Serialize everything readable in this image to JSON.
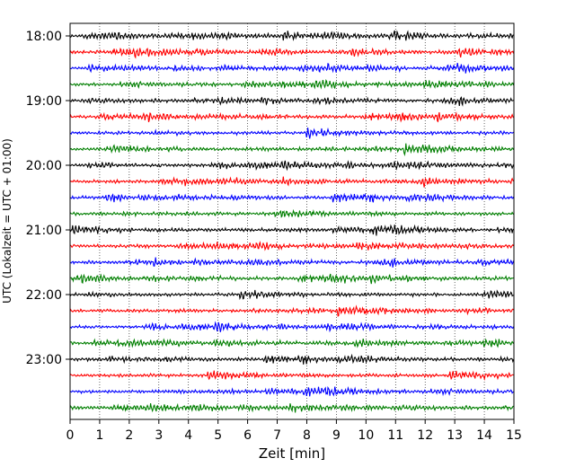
{
  "chart_data": {
    "type": "line",
    "title": "",
    "xlabel": "Zeit  [min]",
    "ylabel": "UTC (Lokalzeit = UTC + 01:00)",
    "xlim": [
      0,
      15
    ],
    "x_ticks": [
      "0",
      "1",
      "2",
      "3",
      "4",
      "5",
      "6",
      "7",
      "8",
      "9",
      "10",
      "11",
      "12",
      "13",
      "14",
      "15"
    ],
    "y_tick_labels": [
      "18:00",
      "19:00",
      "20:00",
      "21:00",
      "22:00",
      "23:00"
    ],
    "grid": "vertical dotted",
    "legend": "none",
    "trace_minutes_per_line": 15,
    "trace_start": "18:00",
    "trace_count": 24,
    "trace_colors": [
      "#000000",
      "#ff0000",
      "#0000ff",
      "#007f00"
    ]
  }
}
